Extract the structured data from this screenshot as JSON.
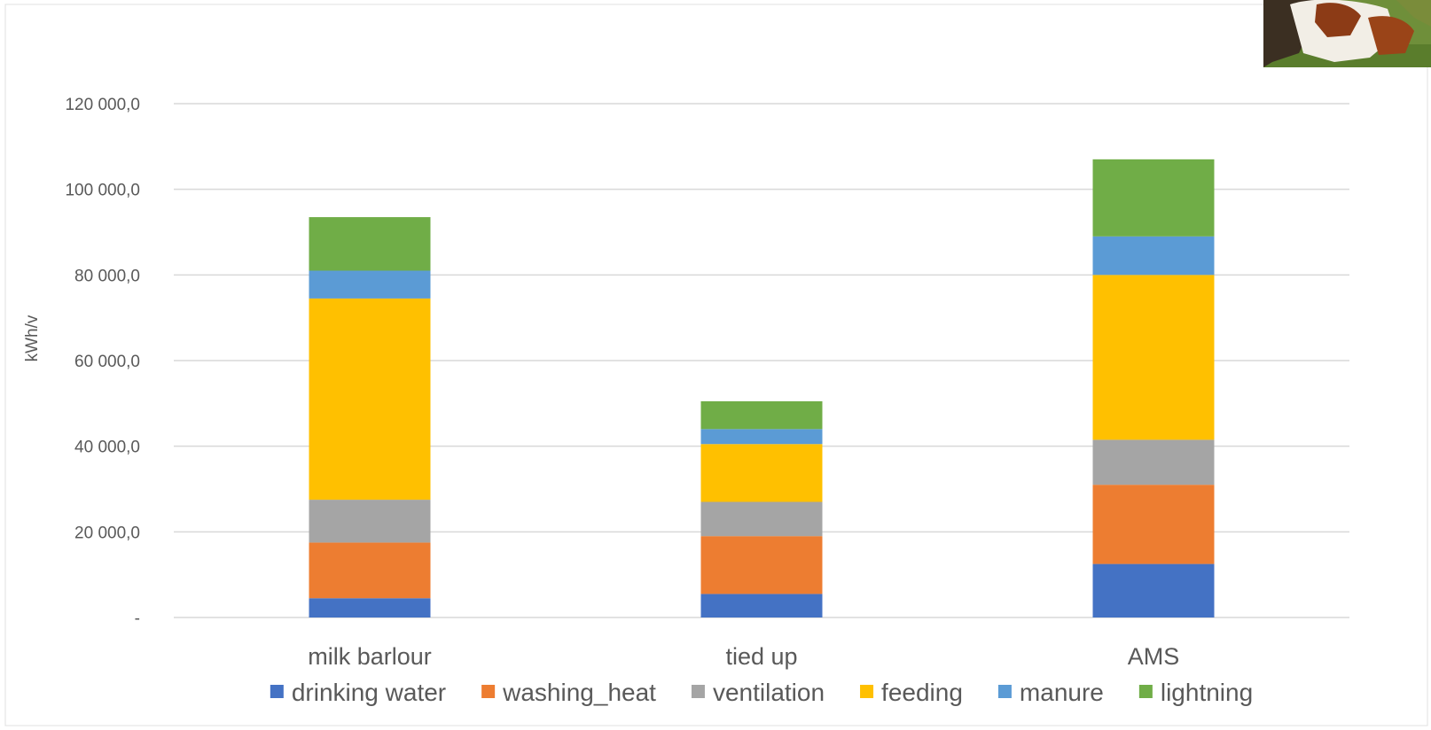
{
  "chart_data": {
    "type": "bar",
    "stacked": true,
    "title": "",
    "xlabel": "",
    "ylabel": "kWh/v",
    "ylim": [
      0,
      120000
    ],
    "ytick_values": [
      0,
      20000,
      40000,
      60000,
      80000,
      100000,
      120000
    ],
    "ytick_labels": [
      "-",
      "20 000,0",
      "40 000,0",
      "60 000,0",
      "80 000,0",
      "100 000,0",
      "120 000,0"
    ],
    "grid": true,
    "legend_position": "bottom",
    "categories": [
      "milk barlour",
      "tied up",
      "AMS"
    ],
    "series": [
      {
        "name": "drinking water",
        "color": "#4472C4",
        "values": [
          4500,
          5500,
          12500
        ]
      },
      {
        "name": "washing_heat",
        "color": "#ED7D31",
        "values": [
          13000,
          13500,
          18500
        ]
      },
      {
        "name": "ventilation",
        "color": "#A5A5A5",
        "values": [
          10000,
          8000,
          10500
        ]
      },
      {
        "name": "feeding",
        "color": "#FFC000",
        "values": [
          47000,
          13500,
          38500
        ]
      },
      {
        "name": "manure",
        "color": "#5B9BD5",
        "values": [
          6500,
          3500,
          9000
        ]
      },
      {
        "name": "lightning",
        "color": "#70AD47",
        "values": [
          12500,
          6500,
          18000
        ]
      }
    ]
  },
  "decoration": {
    "photo_icon": "cow-photo"
  }
}
